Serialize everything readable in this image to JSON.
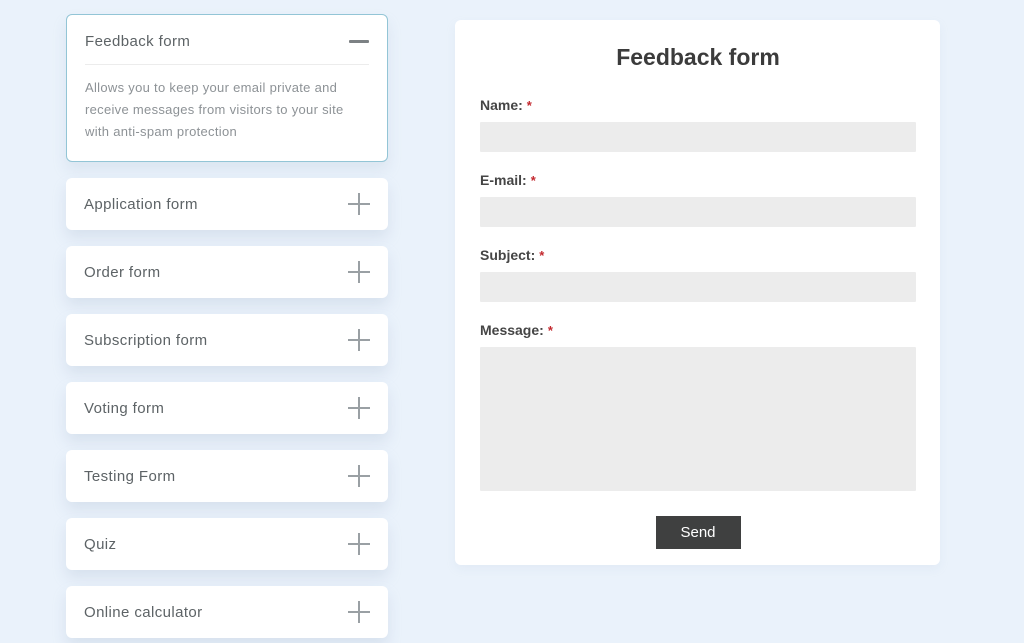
{
  "page": {
    "background_color": "#eaf2fb"
  },
  "sidebar": {
    "expanded_item": {
      "label": "Feedback form",
      "description": "Allows you to keep your email private and receive messages from visitors to your site with anti-spam protection",
      "collapse_icon": "minus-icon",
      "border_color": "#93c5d6"
    },
    "items": [
      {
        "label": "Application form",
        "expand_icon": "plus-icon"
      },
      {
        "label": "Order form",
        "expand_icon": "plus-icon"
      },
      {
        "label": "Subscription form",
        "expand_icon": "plus-icon"
      },
      {
        "label": "Voting form",
        "expand_icon": "plus-icon"
      },
      {
        "label": "Testing Form",
        "expand_icon": "plus-icon"
      },
      {
        "label": "Quiz",
        "expand_icon": "plus-icon"
      },
      {
        "label": "Online calculator",
        "expand_icon": "plus-icon"
      }
    ]
  },
  "form_preview": {
    "title": "Feedback form",
    "required_marker": "*",
    "fields": [
      {
        "label": "Name:",
        "required": true,
        "type": "text",
        "value": ""
      },
      {
        "label": "E-mail:",
        "required": true,
        "type": "text",
        "value": ""
      },
      {
        "label": "Subject:",
        "required": true,
        "type": "text",
        "value": ""
      },
      {
        "label": "Message:",
        "required": true,
        "type": "textarea",
        "value": ""
      }
    ],
    "submit_label": "Send",
    "colors": {
      "button_background": "#3f4040",
      "button_text": "#ffffff",
      "input_background": "#ececec",
      "required_color": "#c3282e"
    }
  }
}
